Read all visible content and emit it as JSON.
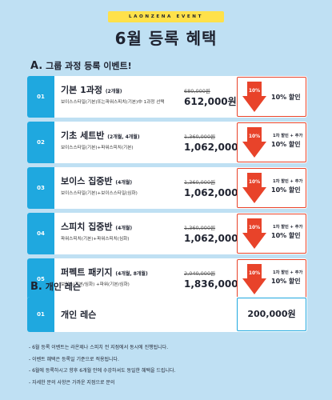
{
  "header": {
    "badge": "LAONZENA EVENT",
    "title": "6월 등록 혜택"
  },
  "section_a": {
    "prefix": "A.",
    "title": "그룹 과정 등록 이벤트!"
  },
  "courses": [
    {
      "num": "01",
      "name": "기본 1과정",
      "months": "(2개월)",
      "desc": "보이스스타일(기본)또는파워스피치(기본)中 1과정 선택",
      "old_price": "680,000원",
      "price": "612,000원",
      "badge_pct": "10%",
      "extra": "",
      "discount": "10% 할인"
    },
    {
      "num": "02",
      "name": "기초 세트반",
      "months": "(2개월, 4개월)",
      "desc": "보이스스타일(기본)+파워스피치(기본)",
      "old_price": "1,360,000원",
      "price": "1,062,000원",
      "badge_pct": "10%",
      "extra": "1차 할인 + 추가",
      "discount": "10% 할인"
    },
    {
      "num": "03",
      "name": "보이스 집중반",
      "months": "(4개월)",
      "desc": "보이스스타일(기본)+보이스스타일(심화)",
      "old_price": "1,360,000원",
      "price": "1,062,000원",
      "badge_pct": "10%",
      "extra": "1차 할인 + 추가",
      "discount": "10% 할인"
    },
    {
      "num": "04",
      "name": "스피치 집중반",
      "months": "(4개월)",
      "desc": "파워스피치(기본)+파워스피치(심화)",
      "old_price": "1,360,000원",
      "price": "1,062,000원",
      "badge_pct": "10%",
      "extra": "1차 할인 + 추가",
      "discount": "10% 할인"
    },
    {
      "num": "05",
      "name": "퍼펙트 패키지",
      "months": "(4개월, 8개월)",
      "desc": "보이스(기본/심화) +파워(기본/심화)",
      "old_price": "2,040,000원",
      "price": "1,836,000원",
      "badge_pct": "10%",
      "extra": "1차 할인 + 추가",
      "discount": "10% 할인"
    }
  ],
  "section_b": {
    "prefix": "B.",
    "title": "개인 레슨"
  },
  "private": {
    "num": "01",
    "name": "개인 레슨",
    "price": "200,000원"
  },
  "notes": [
    "- 6월 등록 이벤트는 라온제나 스피치 전 지점에서 동시에 진행됩니다.",
    "- 이벤트 혜택은 등록일 기준으로 적용됩니다.",
    "- 6월에 등록하시고 향후 6개월 안에 수강하셔도 동일한 혜택을 드립니다.",
    "- 자세한 문의 사항은 가까운 지점으로 문의"
  ],
  "colors": {
    "background": "#bfe0f3",
    "accent_blue": "#1fa8df",
    "accent_red": "#e8432a",
    "badge_yellow": "#ffe14a"
  }
}
